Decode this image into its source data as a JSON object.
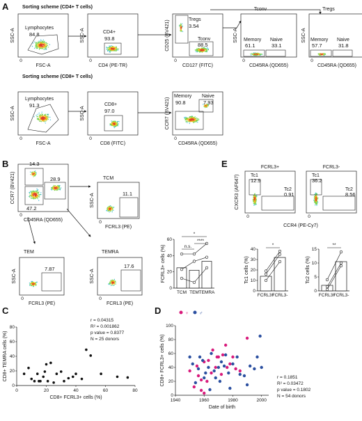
{
  "panels": [
    "A",
    "B",
    "C",
    "D",
    "E"
  ],
  "colors": {
    "low": "#2a2aa8",
    "mid": "#28b4d8",
    "mid2": "#6fd24a",
    "high": "#f0c020",
    "peak": "#e0402a",
    "female": "#d81b7c",
    "male": "#2b4fa0"
  },
  "A": {
    "cd4_title": "Sorting scheme (CD4+ T cells)",
    "cd8_title": "Sorting scheme (CD8+ T cells)",
    "plots": [
      {
        "id": "a1",
        "x": "FSC-A",
        "y": "SSC-A",
        "gates": [
          {
            "label": "Lymphocytes",
            "value": "84.8"
          }
        ]
      },
      {
        "id": "a2",
        "x": "CD4 (PE-TR)",
        "y": "SSC-A",
        "gates": [
          {
            "label": "CD4+",
            "value": "93.8"
          }
        ]
      },
      {
        "id": "a3",
        "x": "CD127 (FITC)",
        "y": "CD25 (BV421)",
        "gates": [
          {
            "label": "Tregs",
            "value": "3.54"
          },
          {
            "label": "Tconv",
            "value": "88.5"
          }
        ]
      },
      {
        "id": "a4",
        "title": "Tconv",
        "x": "CD45RA (QD655)",
        "y": "SSC-A",
        "gates": [
          {
            "label": "Memory",
            "value": "61.1"
          },
          {
            "label": "Naive",
            "value": "33.1"
          }
        ]
      },
      {
        "id": "a5",
        "title": "Tregs",
        "x": "CD45RA (QD655)",
        "y": "SSC-A",
        "gates": [
          {
            "label": "Memory",
            "value": "57.7"
          },
          {
            "label": "Naive",
            "value": "31.8"
          }
        ]
      },
      {
        "id": "a6",
        "x": "FSC-A",
        "y": "SSC-A",
        "gates": [
          {
            "label": "Lymphocytes",
            "value": "91.3"
          }
        ]
      },
      {
        "id": "a7",
        "x": "CD8 (FITC)",
        "y": "SSC-A",
        "gates": [
          {
            "label": "CD8+",
            "value": "97.0"
          }
        ]
      },
      {
        "id": "a8",
        "x": "CD45RA (QD655)",
        "y": "CCR7 (BV421)",
        "gates": [
          {
            "label": "Memory",
            "value": "90.8"
          },
          {
            "label": "Naive",
            "value": "7.93"
          }
        ]
      }
    ]
  },
  "B": {
    "main": {
      "x": "CD45RA (QD655)",
      "y": "CCR7 (BV421)",
      "q_tl": "14.3",
      "q_tr": "28.9",
      "q_bl": "47.2"
    },
    "tcm": {
      "title": "TCM",
      "x": "FCRL3 (PE)",
      "y": "SSC-A",
      "value": "11.1"
    },
    "tem": {
      "title": "TEM",
      "x": "FCRL3 (PE)",
      "y": "SSC-A",
      "value": "7.87"
    },
    "temra": {
      "title": "TEMRA",
      "x": "FCRL3 (PE)",
      "y": "SSC-A",
      "value": "17.6"
    },
    "bar": {
      "ylabel": "FCRL3+ cells (%)",
      "categories": [
        "TCM",
        "TEM",
        "TEMRA"
      ],
      "yticks": [
        "0",
        "20",
        "40",
        "60"
      ],
      "sig": [
        "n.s.",
        "*",
        "****"
      ]
    }
  },
  "C": {
    "xlabel": "CD8+ FCRL3+ cells (%)",
    "ylabel": "CD8+ TEMRA cells (%)",
    "xticks": [
      "0",
      "20",
      "40",
      "60",
      "80"
    ],
    "yticks": [
      "0",
      "20",
      "40",
      "60",
      "80"
    ],
    "stats": [
      "r = 0.04315",
      "R² = 0.001862",
      "p value = 0.8377",
      "N = 25 donors"
    ]
  },
  "D": {
    "xlabel": "Date of birth",
    "ylabel": "CD8+ FCRL3+ cells (%)",
    "xticks": [
      "1940",
      "1960",
      "1980",
      "2000"
    ],
    "yticks": [
      "0",
      "20",
      "40",
      "60",
      "80",
      "100"
    ],
    "legend": [
      "♀",
      "♂"
    ],
    "stats": [
      "r = 0.1851",
      "R² = 0.03472",
      "p value = 0.1802",
      "N = 54 donors"
    ]
  },
  "E": {
    "plus_title": "FCRL3+",
    "minus_title": "FCRL3-",
    "x": "CCR4 (PE-Cy7)",
    "y": "CXCR3 (AF647)",
    "plus": {
      "tc1": "Tc1",
      "tc1v": "12.9",
      "tc2": "Tc2",
      "tc2v": "0.91"
    },
    "minus": {
      "tc1": "Tc1",
      "tc1v": "36.2",
      "tc2": "Tc2",
      "tc2v": "8.56"
    },
    "tc1bar": {
      "ylabel": "Tc1 cells (%)",
      "yticks": [
        "0",
        "10",
        "20",
        "30",
        "40"
      ],
      "categories": [
        "FCRL3+",
        "FCRL3-"
      ],
      "sig": "*"
    },
    "tc2bar": {
      "ylabel": "Tc2 cells (%)",
      "yticks": [
        "0",
        "5",
        "10",
        "15"
      ],
      "categories": [
        "FCRL3+",
        "FCRL3-"
      ],
      "sig": "**"
    }
  },
  "chart_data": [
    {
      "type": "bar",
      "panel": "B",
      "categories": [
        "TCM",
        "TEM",
        "TEMRA"
      ],
      "values": [
        25,
        22,
        33
      ],
      "ylabel": "FCRL3+ cells (%)",
      "ylim": [
        0,
        60
      ],
      "donors": [
        [
          42,
          42,
          55
        ],
        [
          23,
          33,
          38
        ],
        [
          12,
          7,
          25
        ]
      ]
    },
    {
      "type": "scatter",
      "panel": "C",
      "xlabel": "CD8+ FCRL3+ cells (%)",
      "ylabel": "CD8+ TEMRA cells (%)",
      "xlim": [
        0,
        80
      ],
      "ylim": [
        0,
        80
      ],
      "points": [
        [
          5,
          16
        ],
        [
          8,
          24
        ],
        [
          10,
          9
        ],
        [
          12,
          6
        ],
        [
          14,
          16
        ],
        [
          15,
          6
        ],
        [
          16,
          6
        ],
        [
          18,
          12
        ],
        [
          19,
          19
        ],
        [
          20,
          29
        ],
        [
          21,
          6
        ],
        [
          23,
          31
        ],
        [
          25,
          4
        ],
        [
          27,
          16
        ],
        [
          30,
          19
        ],
        [
          32,
          6
        ],
        [
          35,
          10
        ],
        [
          38,
          12
        ],
        [
          40,
          16
        ],
        [
          44,
          9
        ],
        [
          47,
          49
        ],
        [
          50,
          41
        ],
        [
          57,
          16
        ],
        [
          68,
          12
        ],
        [
          75,
          11
        ]
      ]
    },
    {
      "type": "scatter",
      "panel": "D",
      "xlabel": "Date of birth",
      "ylabel": "CD8+ FCRL3+ cells (%)",
      "xlim": [
        1940,
        2005
      ],
      "ylim": [
        0,
        100
      ],
      "series": [
        {
          "name": "♀",
          "values": [
            [
              1950,
              35
            ],
            [
              1953,
              12
            ],
            [
              1955,
              42
            ],
            [
              1956,
              28
            ],
            [
              1958,
              22
            ],
            [
              1958,
              7
            ],
            [
              1960,
              48
            ],
            [
              1960,
              3
            ],
            [
              1962,
              20
            ],
            [
              1963,
              50
            ],
            [
              1965,
              32
            ],
            [
              1966,
              65
            ],
            [
              1968,
              40
            ],
            [
              1969,
              55
            ],
            [
              1970,
              55
            ],
            [
              1972,
              30
            ],
            [
              1973,
              58
            ],
            [
              1975,
              72
            ],
            [
              1976,
              40
            ],
            [
              1978,
              45
            ],
            [
              1980,
              55
            ],
            [
              1982,
              38
            ],
            [
              1985,
              35
            ],
            [
              1990,
              82
            ]
          ]
        },
        {
          "name": "♂",
          "values": [
            [
              1950,
              55
            ],
            [
              1952,
              45
            ],
            [
              1954,
              18
            ],
            [
              1956,
              38
            ],
            [
              1957,
              55
            ],
            [
              1959,
              50
            ],
            [
              1960,
              25
            ],
            [
              1961,
              32
            ],
            [
              1963,
              40
            ],
            [
              1964,
              8
            ],
            [
              1965,
              60
            ],
            [
              1967,
              35
            ],
            [
              1968,
              25
            ],
            [
              1970,
              40
            ],
            [
              1971,
              20
            ],
            [
              1972,
              48
            ],
            [
              1974,
              42
            ],
            [
              1975,
              58
            ],
            [
              1977,
              32
            ],
            [
              1978,
              10
            ],
            [
              1980,
              45
            ],
            [
              1983,
              55
            ],
            [
              1985,
              30
            ],
            [
              1988,
              28
            ],
            [
              1990,
              15
            ],
            [
              1992,
              42
            ],
            [
              1995,
              38
            ],
            [
              1997,
              55
            ],
            [
              1999,
              85
            ],
            [
              2000,
              40
            ]
          ]
        }
      ]
    },
    {
      "type": "bar",
      "panel": "E",
      "name": "Tc1",
      "categories": [
        "FCRL3+",
        "FCRL3-"
      ],
      "values": [
        14,
        32
      ],
      "ylim": [
        0,
        40
      ],
      "donors": [
        [
          10,
          28
        ],
        [
          16,
          35
        ],
        [
          19,
          38
        ]
      ]
    },
    {
      "type": "bar",
      "panel": "E",
      "name": "Tc2",
      "categories": [
        "FCRL3+",
        "FCRL3-"
      ],
      "values": [
        2,
        10.5
      ],
      "ylim": [
        0,
        15
      ],
      "donors": [
        [
          0.5,
          9
        ],
        [
          1.5,
          10
        ],
        [
          4,
          14
        ]
      ]
    }
  ]
}
